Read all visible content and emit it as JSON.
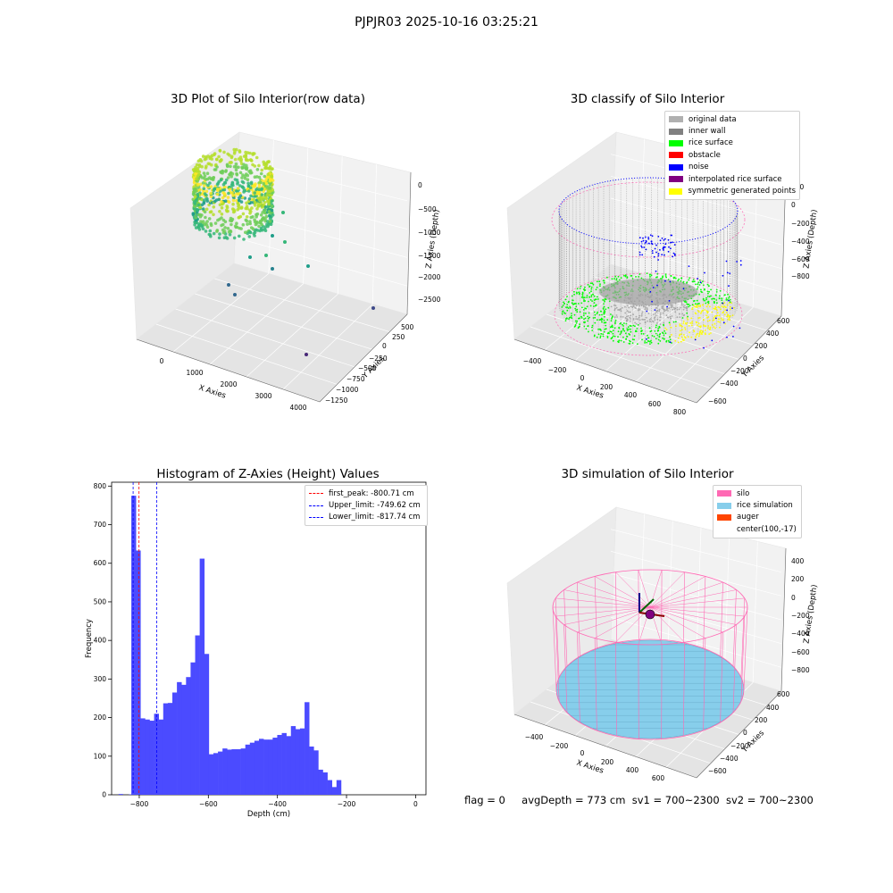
{
  "figure_title": "PJPJR03 2025-10-16 03:25:21",
  "status_line": {
    "flag": "flag = 0",
    "avg_depth": "avgDepth = 773 cm",
    "sv1": "sv1 = 700~2300",
    "sv2": "sv2 = 700~2300"
  },
  "colors": {
    "original": "#b0b0b0",
    "inner_wall": "#808080",
    "rice_surface": "#00ff00",
    "obstacle": "#ff0000",
    "noise": "#0000ff",
    "interpolated": "#800080",
    "symmetric": "#ffff00",
    "silo": "#ff69b4",
    "rice_sim": "#87ceeb",
    "auger": "#ff4500",
    "hist_bar": "#4b4bff",
    "first_peak": "#ff0000",
    "limits": "#0000ff"
  },
  "chart_data": [
    {
      "type": "scatter",
      "projection": "3d",
      "title": "3D Plot of Silo Interior(row data)",
      "xlabel": "X Axies",
      "ylabel": "Y Axies",
      "zlabel": "Z Axies (Depth)",
      "xticks": [
        "0",
        "1000",
        "2000",
        "3000",
        "4000"
      ],
      "yticks": [
        "500",
        "250",
        "0",
        "−250",
        "−500",
        "−750",
        "−1000",
        "−1250"
      ],
      "zticks": [
        "0",
        "−500",
        "−1000",
        "−1500",
        "−2000",
        "−2500"
      ],
      "xlim": [
        -400,
        4000
      ],
      "ylim": [
        -1300,
        700
      ],
      "zlim": [
        -2800,
        100
      ],
      "colormap": "viridis by depth"
    },
    {
      "type": "scatter",
      "projection": "3d",
      "title": "3D classify of Silo Interior",
      "xlabel": "X Axies",
      "ylabel": "Y Axies",
      "zlabel": "Z Axies (Depth)",
      "xticks": [
        "−400",
        "−200",
        "0",
        "200",
        "400",
        "600",
        "800"
      ],
      "yticks": [
        "600",
        "400",
        "200",
        "0",
        "−200",
        "−400",
        "−600"
      ],
      "zticks": [
        "200",
        "0",
        "−200",
        "−400",
        "−600",
        "−800"
      ],
      "legend": [
        "original data",
        "inner wall",
        "rice surface",
        "obstacle",
        "noise",
        "interpolated rice surface",
        "symmetric generated points"
      ],
      "legend_position": "upper-right"
    },
    {
      "type": "bar",
      "title": "Histogram of Z-Axies (Height) Values",
      "xlabel": "Depth (cm)",
      "ylabel": "Frequency",
      "xlim": [
        -880,
        30
      ],
      "ylim": [
        0,
        810
      ],
      "xticks": [
        -800,
        -600,
        -400,
        -200,
        0
      ],
      "yticks": [
        0,
        100,
        200,
        300,
        400,
        500,
        600,
        700,
        800
      ],
      "bins": {
        "start": -823,
        "width": 13.2,
        "values": [
          775,
          633,
          198,
          195,
          192,
          210,
          195,
          237,
          238,
          265,
          292,
          285,
          305,
          343,
          413,
          612,
          365,
          105,
          108,
          112,
          120,
          117,
          118,
          118,
          120,
          130,
          135,
          140,
          145,
          143,
          143,
          148,
          155,
          160,
          152,
          178,
          170,
          172,
          240,
          125,
          115,
          65,
          58,
          38,
          20,
          38
        ]
      },
      "lead_bins": [
        {
          "x": -860,
          "value": 2
        },
        {
          "x": -830,
          "value": 1
        }
      ],
      "vlines": [
        {
          "x": -800.71,
          "label": "first_peak: -800.71 cm",
          "color": "#ff0000"
        },
        {
          "x": -749.62,
          "label": "Upper_limit: -749.62 cm",
          "color": "#0000ff"
        },
        {
          "x": -817.74,
          "label": "Lower_limit: -817.74 cm",
          "color": "#0000ff"
        }
      ],
      "legend_position": "upper-right"
    },
    {
      "type": "surface",
      "projection": "3d",
      "title": "3D simulation of Silo Interior",
      "xlabel": "X Axies",
      "ylabel": "Y Axies",
      "zlabel": "Z Axies (Depth)",
      "xticks": [
        "−400",
        "−200",
        "0",
        "200",
        "400",
        "600"
      ],
      "yticks": [
        "600",
        "400",
        "200",
        "0",
        "−200",
        "−400",
        "−600"
      ],
      "zticks": [
        "400",
        "200",
        "0",
        "−200",
        "−400",
        "−600",
        "−800"
      ],
      "legend": [
        "silo",
        "rice simulation",
        "auger",
        "center(100,-17)"
      ],
      "legend_position": "upper-right"
    }
  ]
}
